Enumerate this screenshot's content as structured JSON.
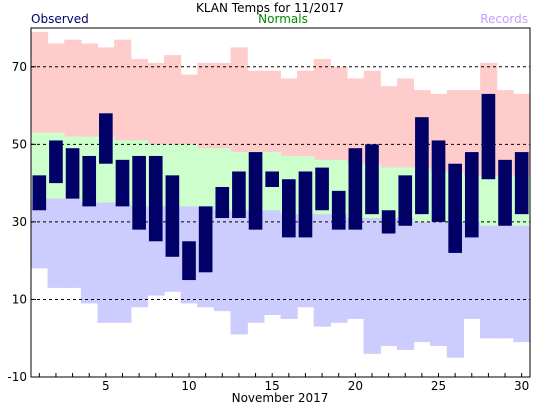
{
  "chart_data": {
    "type": "bar",
    "title": "KLAN Temps for 11/2017",
    "xlabel": "November 2017",
    "ylabel": "",
    "legend": [
      {
        "label": "Observed",
        "color": "#000066",
        "position": "top-left"
      },
      {
        "label": "Normals",
        "color": "#008800",
        "position": "top-center"
      },
      {
        "label": "Records",
        "color": "#cc99ff",
        "position": "top-right"
      }
    ],
    "ylim": [
      -10,
      80
    ],
    "yticks": [
      -10,
      10,
      30,
      50,
      70
    ],
    "xlim": [
      0.5,
      30.5
    ],
    "xticks": [
      5,
      10,
      15,
      20,
      25,
      30
    ],
    "grid_lines_y": [
      10,
      30,
      50,
      70
    ],
    "days": [
      1,
      2,
      3,
      4,
      5,
      6,
      7,
      8,
      9,
      10,
      11,
      12,
      13,
      14,
      15,
      16,
      17,
      18,
      19,
      20,
      21,
      22,
      23,
      24,
      25,
      26,
      27,
      28,
      29,
      30
    ],
    "series": [
      {
        "name": "Observed",
        "color": "#000066",
        "high": [
          42,
          51,
          49,
          47,
          58,
          46,
          47,
          47,
          42,
          25,
          34,
          39,
          43,
          48,
          43,
          41,
          43,
          44,
          38,
          49,
          50,
          33,
          42,
          57,
          51,
          45,
          48,
          63,
          46,
          48
        ],
        "low": [
          33,
          40,
          36,
          34,
          45,
          34,
          28,
          25,
          21,
          15,
          17,
          31,
          31,
          28,
          39,
          26,
          26,
          33,
          28,
          28,
          32,
          27,
          29,
          32,
          30,
          22,
          26,
          41,
          29,
          32
        ]
      },
      {
        "name": "Normals",
        "color": "#ccffcc",
        "high": [
          53,
          53,
          52,
          52,
          52,
          51,
          51,
          50,
          50,
          50,
          49,
          49,
          48,
          48,
          48,
          47,
          47,
          46,
          46,
          45,
          45,
          44,
          44,
          44,
          43,
          43,
          42,
          42,
          42,
          42
        ],
        "low": [
          36,
          36,
          36,
          35,
          35,
          35,
          34,
          34,
          34,
          34,
          34,
          33,
          33,
          33,
          33,
          32,
          32,
          32,
          32,
          31,
          31,
          31,
          31,
          30,
          30,
          30,
          30,
          29,
          29,
          29
        ]
      },
      {
        "name": "Records",
        "color": "#ffcccc",
        "high": [
          79,
          76,
          77,
          76,
          75,
          77,
          72,
          71,
          73,
          68,
          71,
          71,
          75,
          69,
          69,
          67,
          69,
          72,
          70,
          67,
          69,
          65,
          67,
          64,
          63,
          64,
          64,
          71,
          64,
          63
        ],
        "low": [
          18,
          13,
          13,
          9,
          4,
          4,
          8,
          11,
          12,
          9,
          8,
          7,
          1,
          4,
          6,
          5,
          8,
          3,
          4,
          5,
          -4,
          -2,
          -3,
          -1,
          -2,
          -5,
          5,
          0,
          0,
          -1
        ]
      }
    ]
  }
}
